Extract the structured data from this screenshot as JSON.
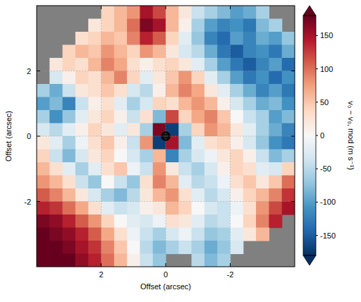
{
  "chart_data": {
    "type": "heatmap",
    "x_label": "Offset (arcsec)",
    "y_label": "Offset (arcsec)",
    "xlim": [
      4,
      -4
    ],
    "ylim": [
      -4,
      4
    ],
    "xticks": [
      2,
      0,
      -2
    ],
    "yticks": [
      2,
      0,
      -2
    ],
    "grid": true,
    "x": [
      3.8,
      3.4,
      3.0,
      2.6,
      2.2,
      1.8,
      1.4,
      1.0,
      0.6,
      0.2,
      -0.2,
      -0.6,
      -1.0,
      -1.4,
      -1.8,
      -2.2,
      -2.6,
      -3.0,
      -3.4,
      -3.8
    ],
    "y": [
      3.8,
      3.4,
      3.0,
      2.6,
      2.2,
      1.8,
      1.4,
      1.0,
      0.6,
      0.2,
      -0.2,
      -0.6,
      -1.0,
      -1.4,
      -1.8,
      -2.2,
      -2.6,
      -3.0,
      -3.4,
      -3.8
    ],
    "values": [
      [
        null,
        null,
        null,
        null,
        null,
        40,
        60,
        80,
        150,
        120,
        60,
        20,
        -40,
        -60,
        -80,
        -100,
        -90,
        -60,
        null,
        null
      ],
      [
        null,
        null,
        null,
        null,
        20,
        40,
        60,
        100,
        170,
        150,
        60,
        10,
        -60,
        -100,
        -120,
        -110,
        -130,
        -80,
        -60,
        null
      ],
      [
        null,
        null,
        null,
        30,
        40,
        60,
        50,
        90,
        140,
        110,
        40,
        -20,
        -70,
        -120,
        -140,
        -100,
        -120,
        -90,
        -100,
        -70
      ],
      [
        null,
        null,
        40,
        60,
        50,
        80,
        60,
        40,
        80,
        60,
        20,
        -30,
        -50,
        -90,
        -130,
        -150,
        -120,
        -110,
        -130,
        -90
      ],
      [
        null,
        20,
        40,
        30,
        60,
        90,
        70,
        30,
        10,
        30,
        40,
        20,
        -20,
        -60,
        -100,
        -130,
        -150,
        -120,
        -100,
        -140
      ],
      [
        null,
        -30,
        10,
        40,
        30,
        60,
        90,
        40,
        -20,
        20,
        50,
        80,
        40,
        -20,
        -60,
        -100,
        -130,
        -110,
        -140,
        -110
      ],
      [
        -60,
        -90,
        -40,
        20,
        30,
        50,
        30,
        -30,
        -50,
        10,
        60,
        90,
        70,
        20,
        -20,
        -60,
        -90,
        -120,
        -100,
        -130
      ],
      [
        -100,
        -80,
        -120,
        -40,
        10,
        30,
        -20,
        -60,
        -30,
        40,
        30,
        60,
        80,
        60,
        10,
        -30,
        -60,
        -90,
        -80,
        -110
      ],
      [
        -60,
        -110,
        -70,
        -20,
        20,
        40,
        10,
        -40,
        30,
        -80,
        120,
        40,
        70,
        90,
        50,
        0,
        -40,
        -60,
        -100,
        -80
      ],
      [
        -30,
        -50,
        -20,
        10,
        40,
        20,
        -20,
        20,
        -60,
        170,
        -170,
        -60,
        40,
        80,
        60,
        20,
        -20,
        -60,
        -90,
        -120
      ],
      [
        20,
        -20,
        -60,
        -10,
        30,
        50,
        10,
        -40,
        80,
        -170,
        150,
        -80,
        -20,
        30,
        40,
        10,
        -30,
        -70,
        -110,
        -130
      ],
      [
        40,
        -40,
        -80,
        -30,
        20,
        40,
        0,
        -30,
        -60,
        60,
        -120,
        -60,
        -30,
        -10,
        20,
        40,
        10,
        -40,
        -80,
        -60
      ],
      [
        60,
        30,
        -20,
        -60,
        -20,
        30,
        50,
        -10,
        -40,
        80,
        20,
        -40,
        -60,
        -30,
        10,
        40,
        30,
        -20,
        -30,
        40
      ],
      [
        80,
        60,
        30,
        -40,
        -70,
        0,
        -40,
        -70,
        30,
        90,
        60,
        -20,
        -50,
        -40,
        -10,
        30,
        50,
        20,
        50,
        100
      ],
      [
        110,
        90,
        60,
        20,
        -30,
        -60,
        -80,
        -50,
        20,
        60,
        80,
        30,
        -20,
        -50,
        -30,
        10,
        40,
        60,
        90,
        130
      ],
      [
        140,
        130,
        100,
        70,
        30,
        -20,
        -40,
        -30,
        10,
        20,
        60,
        40,
        0,
        -30,
        -40,
        -10,
        30,
        80,
        120,
        150
      ],
      [
        170,
        160,
        140,
        110,
        80,
        40,
        0,
        -20,
        -30,
        -10,
        30,
        20,
        -20,
        -50,
        -40,
        0,
        40,
        90,
        140,
        null
      ],
      [
        180,
        170,
        160,
        140,
        110,
        70,
        30,
        -10,
        -40,
        -60,
        -30,
        -10,
        -40,
        -70,
        -60,
        -20,
        20,
        60,
        null,
        null
      ],
      [
        180,
        180,
        170,
        150,
        130,
        90,
        50,
        0,
        -50,
        -80,
        -60,
        -40,
        -60,
        -90,
        -70,
        -30,
        null,
        null,
        null,
        null
      ],
      [
        180,
        180,
        180,
        160,
        140,
        100,
        60,
        10,
        -40,
        -70,
        null,
        null,
        -50,
        -80,
        -60,
        null,
        null,
        null,
        null,
        null
      ]
    ],
    "colorbar": {
      "range": [
        -180,
        180
      ],
      "ticks": [
        150,
        100,
        50,
        0,
        -50,
        -100,
        -150
      ],
      "label": "v₀ − v₀, mod  (m s⁻¹)"
    }
  }
}
